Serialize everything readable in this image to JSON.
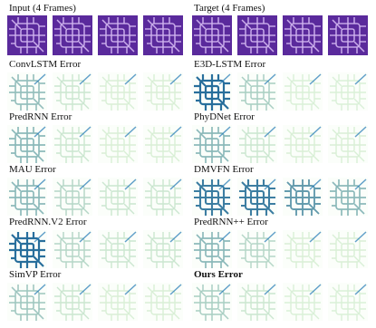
{
  "header": {
    "input": "Input (4 Frames)",
    "target": "Target (4 Frames)"
  },
  "rows": [
    [
      "ConvLSTM Error",
      "E3D-LSTM Error"
    ],
    [
      "PredRNN Error",
      "PhyDNet Error"
    ],
    [
      "MAU Error",
      "DMVFN Error"
    ],
    [
      "PredRNN.V2 Error",
      "PredRNN++ Error"
    ],
    [
      "SimVP Error",
      "Ours Error"
    ]
  ]
}
